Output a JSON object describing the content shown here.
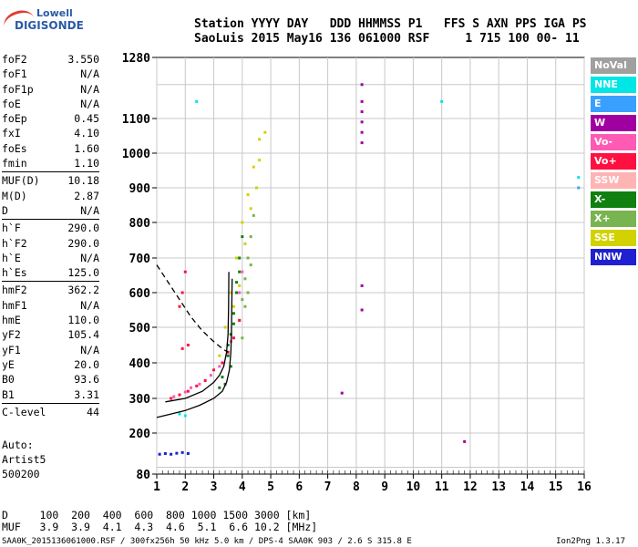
{
  "logo": {
    "brand": "Lowell",
    "product": "DIGISONDE"
  },
  "header": {
    "line1": "Station YYYY DAY   DDD HHMMSS P1   FFS S AXN PPS IGA PS",
    "line2": "SaoLuis 2015 May16 136 061000 RSF     1 715 100 00- 11"
  },
  "params": [
    [
      {
        "label": "foF2",
        "value": "3.550"
      },
      {
        "label": "foF1",
        "value": "N/A"
      },
      {
        "label": "foF1p",
        "value": "N/A"
      },
      {
        "label": "foE",
        "value": "N/A"
      },
      {
        "label": "foEp",
        "value": "0.45"
      },
      {
        "label": "fxI",
        "value": "4.10"
      },
      {
        "label": "foEs",
        "value": "1.60"
      },
      {
        "label": "fmin",
        "value": "1.10"
      }
    ],
    [
      {
        "label": "MUF(D)",
        "value": "10.18"
      },
      {
        "label": "M(D)",
        "value": "2.87"
      },
      {
        "label": "D",
        "value": "N/A"
      }
    ],
    [
      {
        "label": "h`F",
        "value": "290.0"
      },
      {
        "label": "h`F2",
        "value": "290.0"
      },
      {
        "label": "h`E",
        "value": "N/A"
      },
      {
        "label": "h`Es",
        "value": "125.0"
      }
    ],
    [
      {
        "label": "hmF2",
        "value": "362.2"
      },
      {
        "label": "hmF1",
        "value": "N/A"
      },
      {
        "label": "hmE",
        "value": "110.0"
      },
      {
        "label": "yF2",
        "value": "105.4"
      },
      {
        "label": "yF1",
        "value": "N/A"
      },
      {
        "label": "yE",
        "value": "20.0"
      },
      {
        "label": "B0",
        "value": "93.6"
      },
      {
        "label": "B1",
        "value": "3.31"
      }
    ],
    [
      {
        "label": "C-level",
        "value": "44"
      }
    ]
  ],
  "auto": {
    "line1": "Auto:",
    "line2": "Artist5",
    "line3": "500200"
  },
  "muf_table": {
    "d_line": "D     100  200  400  600  800 1000 1500 3000 [km]",
    "muf_line": "MUF   3.9  3.9  4.1  4.3  4.6  5.1  6.6 10.2 [MHz]"
  },
  "footer": "SAA0K_2015136061000.RSF / 300fx256h 50 kHz 5.0 km / DPS-4 SAA0K 903 / 2.6 S 315.8 E",
  "version": "Ion2Png 1.3.17",
  "legend": [
    {
      "label": "NoVal",
      "color": "#a0a0a0"
    },
    {
      "label": "NNE",
      "color": "#00e6e6"
    },
    {
      "label": "E",
      "color": "#3aa0ff"
    },
    {
      "label": "W",
      "color": "#a000a0"
    },
    {
      "label": "Vo-",
      "color": "#ff5ab4"
    },
    {
      "label": "Vo+",
      "color": "#ff1040"
    },
    {
      "label": "SSW",
      "color": "#ffb4b4"
    },
    {
      "label": "X-",
      "color": "#108010"
    },
    {
      "label": "X+",
      "color": "#78b450"
    },
    {
      "label": "SSE",
      "color": "#d2d200"
    },
    {
      "label": "NNW",
      "color": "#2020d0"
    }
  ],
  "chart_data": {
    "type": "scatter",
    "title": "",
    "xlabel": "",
    "ylabel": "",
    "xlim": [
      1,
      16
    ],
    "ylim": [
      80,
      1280
    ],
    "x_ticks": [
      1,
      2,
      3,
      4,
      5,
      6,
      7,
      8,
      9,
      10,
      11,
      12,
      13,
      14,
      15,
      16
    ],
    "y_ticks": [
      80,
      200,
      300,
      400,
      500,
      600,
      700,
      800,
      900,
      1000,
      1100,
      1280
    ],
    "grid": true,
    "series": [
      {
        "name": "X-",
        "points": [
          [
            3.3,
            360
          ],
          [
            3.5,
            420
          ],
          [
            3.6,
            480
          ],
          [
            3.7,
            540
          ],
          [
            3.8,
            600
          ],
          [
            3.9,
            660
          ],
          [
            3.6,
            390
          ],
          [
            3.4,
            340
          ],
          [
            3.7,
            510
          ],
          [
            3.5,
            450
          ],
          [
            3.8,
            630
          ],
          [
            3.2,
            330
          ],
          [
            3.9,
            700
          ],
          [
            4.0,
            760
          ]
        ]
      },
      {
        "name": "X+",
        "points": [
          [
            3.9,
            520
          ],
          [
            4.0,
            580
          ],
          [
            4.1,
            640
          ],
          [
            4.2,
            700
          ],
          [
            4.3,
            760
          ],
          [
            4.4,
            820
          ],
          [
            4.1,
            560
          ],
          [
            4.0,
            470
          ],
          [
            4.2,
            600
          ],
          [
            4.3,
            680
          ]
        ]
      },
      {
        "name": "SSE",
        "points": [
          [
            3.2,
            420
          ],
          [
            3.4,
            500
          ],
          [
            3.6,
            600
          ],
          [
            3.8,
            700
          ],
          [
            4.0,
            800
          ],
          [
            4.2,
            880
          ],
          [
            4.4,
            960
          ],
          [
            4.6,
            1040
          ],
          [
            4.5,
            900
          ],
          [
            4.3,
            840
          ],
          [
            4.1,
            740
          ],
          [
            3.9,
            620
          ],
          [
            3.7,
            560
          ],
          [
            4.6,
            980
          ],
          [
            4.8,
            1060
          ]
        ]
      },
      {
        "name": "Vo+",
        "points": [
          [
            1.5,
            300
          ],
          [
            1.8,
            310
          ],
          [
            2.1,
            320
          ],
          [
            2.4,
            335
          ],
          [
            2.7,
            350
          ],
          [
            3.0,
            380
          ],
          [
            3.3,
            400
          ],
          [
            3.5,
            430
          ],
          [
            3.7,
            470
          ],
          [
            3.9,
            520
          ],
          [
            1.8,
            560
          ],
          [
            1.9,
            600
          ],
          [
            2.0,
            660
          ],
          [
            1.9,
            440
          ],
          [
            2.1,
            450
          ]
        ]
      },
      {
        "name": "Vo-",
        "points": [
          [
            1.6,
            305
          ],
          [
            2.0,
            318
          ],
          [
            2.5,
            340
          ],
          [
            2.9,
            365
          ],
          [
            3.2,
            390
          ],
          [
            3.6,
            460
          ],
          [
            3.9,
            600
          ],
          [
            4.0,
            660
          ],
          [
            2.2,
            330
          ]
        ]
      },
      {
        "name": "W",
        "points": [
          [
            8.2,
            1030
          ],
          [
            8.2,
            1060
          ],
          [
            8.2,
            1090
          ],
          [
            8.2,
            1120
          ],
          [
            8.2,
            1150
          ],
          [
            8.2,
            1200
          ],
          [
            8.2,
            620
          ],
          [
            8.2,
            550
          ],
          [
            7.5,
            315
          ],
          [
            11.8,
            175
          ]
        ]
      },
      {
        "name": "NNE",
        "points": [
          [
            11.0,
            1150
          ],
          [
            15.8,
            930
          ],
          [
            2.4,
            1150
          ],
          [
            1.8,
            255
          ],
          [
            2.0,
            250
          ]
        ]
      },
      {
        "name": "NNW",
        "points": [
          [
            1.1,
            138
          ],
          [
            1.3,
            140
          ],
          [
            1.5,
            138
          ],
          [
            1.7,
            141
          ],
          [
            1.9,
            143
          ],
          [
            2.1,
            140
          ]
        ]
      },
      {
        "name": "E",
        "points": [
          [
            15.8,
            900
          ]
        ]
      }
    ],
    "curves": [
      {
        "name": "profile",
        "style": "solid",
        "points": [
          [
            1,
            245
          ],
          [
            1.5,
            255
          ],
          [
            2.0,
            265
          ],
          [
            2.5,
            280
          ],
          [
            3.0,
            300
          ],
          [
            3.3,
            320
          ],
          [
            3.45,
            345
          ],
          [
            3.55,
            380
          ],
          [
            3.6,
            430
          ],
          [
            3.62,
            480
          ],
          [
            3.63,
            540
          ],
          [
            3.64,
            600
          ],
          [
            3.645,
            640
          ]
        ]
      },
      {
        "name": "trace",
        "style": "solid",
        "points": [
          [
            1.3,
            290
          ],
          [
            2.0,
            300
          ],
          [
            2.6,
            320
          ],
          [
            3.0,
            345
          ],
          [
            3.2,
            365
          ],
          [
            3.35,
            390
          ],
          [
            3.45,
            430
          ],
          [
            3.5,
            480
          ],
          [
            3.52,
            560
          ],
          [
            3.53,
            660
          ]
        ]
      },
      {
        "name": "topside",
        "style": "dashed",
        "points": [
          [
            1,
            680
          ],
          [
            1.4,
            630
          ],
          [
            1.8,
            580
          ],
          [
            2.2,
            530
          ],
          [
            2.6,
            490
          ],
          [
            3.0,
            460
          ],
          [
            3.3,
            440
          ],
          [
            3.5,
            430
          ]
        ]
      }
    ]
  }
}
